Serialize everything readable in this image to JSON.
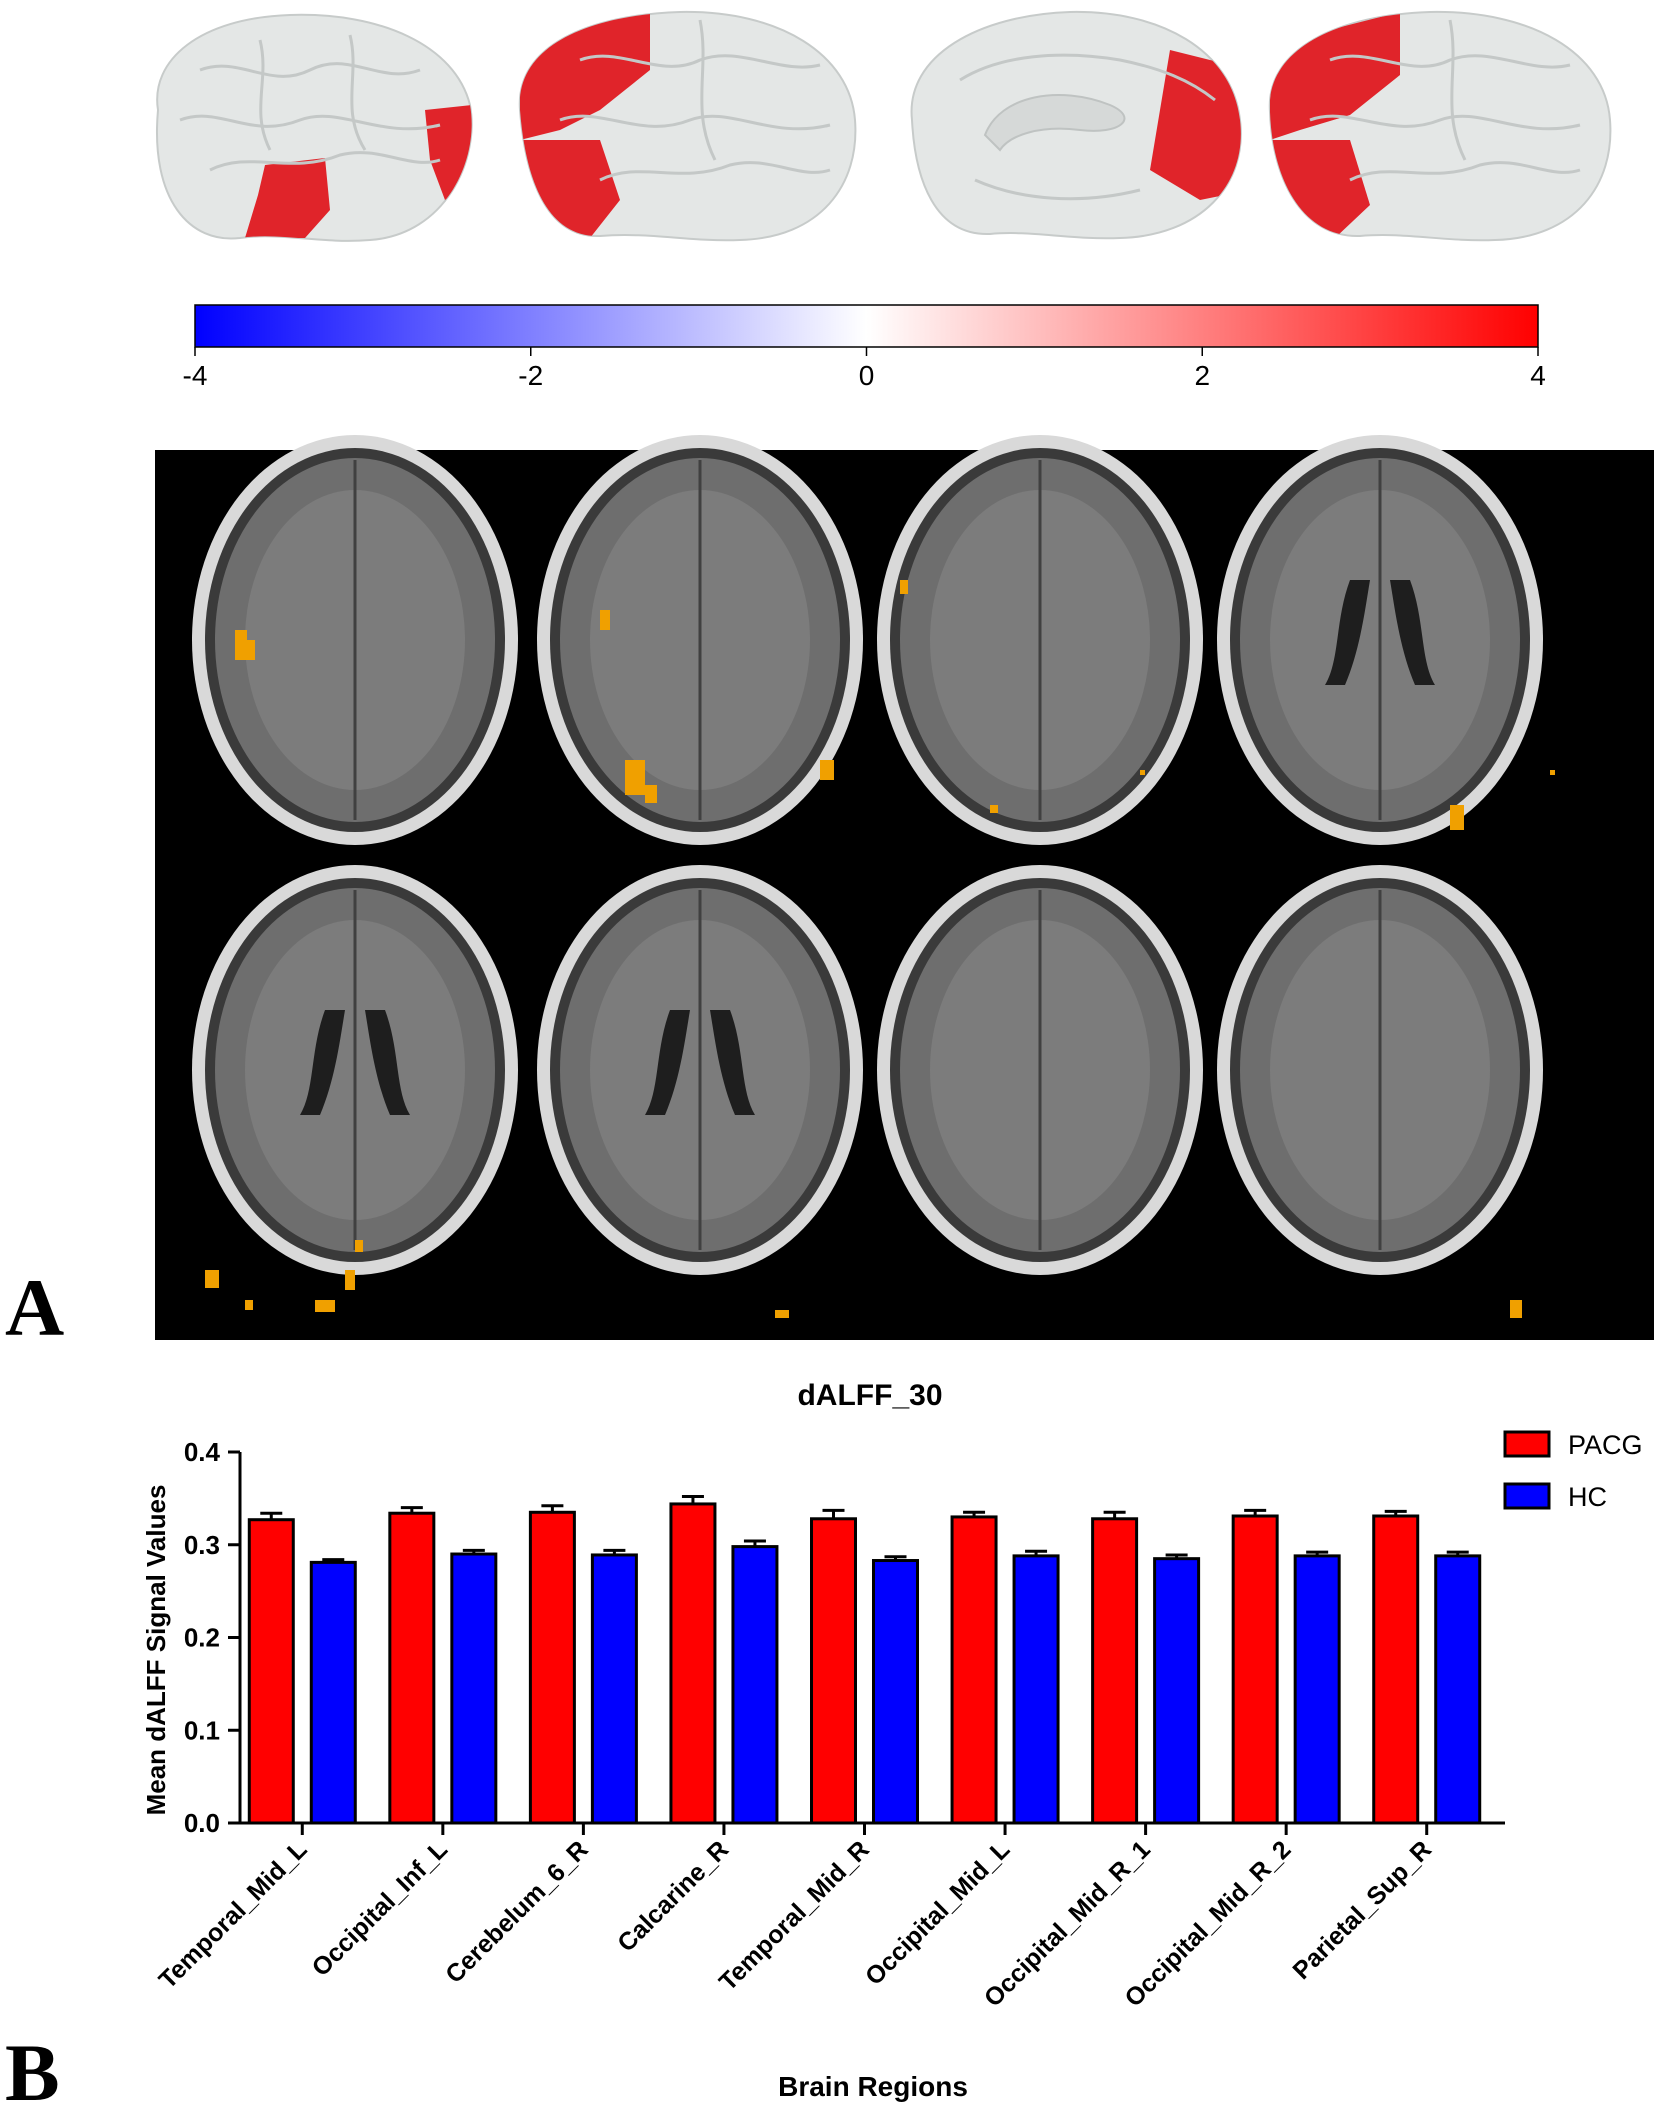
{
  "panel_labels": {
    "a": "A",
    "b": "B"
  },
  "colorbar": {
    "ticks": [
      "-4",
      "-2",
      "0",
      "2",
      "4"
    ],
    "min": -4,
    "max": 4,
    "colors": {
      "low": "#0000ff",
      "mid": "#ffffff",
      "high": "#ff0000"
    }
  },
  "colors": {
    "surface": "#e4e7e6",
    "activation_red": "#e0242a",
    "activation_orange": "#f0a000",
    "mri_background": "#000000",
    "pacg": "#ff0000",
    "hc": "#0000ff"
  },
  "chart_data": {
    "type": "bar",
    "title": "dALFF_30",
    "xlabel": "Brain Regions",
    "ylabel": "Mean dALFF  Signal Values",
    "ylim": [
      0,
      0.4
    ],
    "yticks": [
      "0.0",
      "0.1",
      "0.2",
      "0.3",
      "0.4"
    ],
    "categories": [
      "Temporal_Mid_L",
      "Occipital_Inf_L",
      "Cerebelum_6_R",
      "Calcarine_R",
      "Temporal_Mid_R",
      "Occipital_Mid_L",
      "Occipital_Mid_R_1",
      "Occipital_Mid_R_2",
      "Parietal_Sup_R"
    ],
    "series": [
      {
        "name": "PACG",
        "color": "#ff0000",
        "values": [
          0.327,
          0.334,
          0.335,
          0.344,
          0.328,
          0.33,
          0.328,
          0.331,
          0.331
        ],
        "errors": [
          0.007,
          0.006,
          0.007,
          0.008,
          0.009,
          0.005,
          0.007,
          0.006,
          0.005
        ]
      },
      {
        "name": "HC",
        "color": "#0000ff",
        "values": [
          0.281,
          0.29,
          0.289,
          0.298,
          0.283,
          0.288,
          0.285,
          0.288,
          0.288
        ],
        "errors": [
          0.003,
          0.004,
          0.005,
          0.006,
          0.004,
          0.005,
          0.004,
          0.004,
          0.004
        ]
      }
    ],
    "legend": "top-right",
    "grid": false
  }
}
